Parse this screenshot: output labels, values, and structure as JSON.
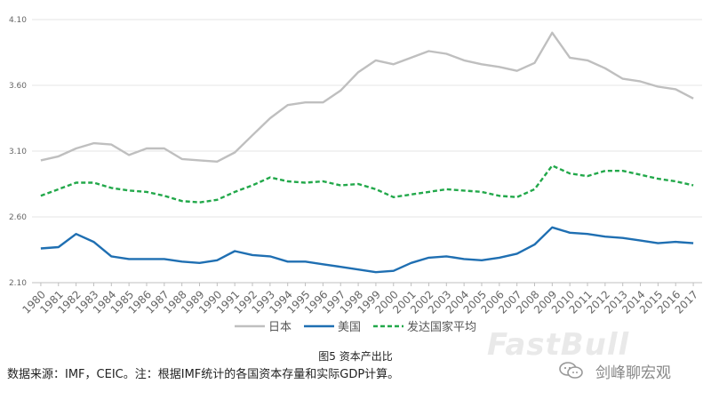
{
  "chart_data": {
    "type": "line",
    "title": "图5 资本产出比",
    "xlabel": "",
    "ylabel": "",
    "ylim": [
      2.1,
      4.1
    ],
    "yticks": [
      "2.10",
      "2.60",
      "3.10",
      "3.60",
      "4.10"
    ],
    "x": [
      "1980",
      "1981",
      "1982",
      "1983",
      "1984",
      "1985",
      "1986",
      "1987",
      "1988",
      "1989",
      "1990",
      "1991",
      "1992",
      "1993",
      "1994",
      "1995",
      "1996",
      "1997",
      "1998",
      "1999",
      "2000",
      "2001",
      "2002",
      "2003",
      "2004",
      "2005",
      "2006",
      "2007",
      "2008",
      "2009",
      "2010",
      "2011",
      "2012",
      "2013",
      "2014",
      "2015",
      "2016",
      "2017"
    ],
    "grid": "horizontal",
    "legend_position": "bottom",
    "series": [
      {
        "name": "日本",
        "color": "#bfbfbf",
        "style": "solid",
        "values": [
          3.03,
          3.06,
          3.12,
          3.16,
          3.15,
          3.07,
          3.12,
          3.12,
          3.04,
          3.03,
          3.02,
          3.09,
          3.22,
          3.35,
          3.45,
          3.47,
          3.47,
          3.56,
          3.7,
          3.79,
          3.76,
          3.81,
          3.86,
          3.84,
          3.79,
          3.76,
          3.74,
          3.71,
          3.77,
          4.0,
          3.81,
          3.79,
          3.73,
          3.65,
          3.63,
          3.59,
          3.57,
          3.5
        ]
      },
      {
        "name": "美国",
        "color": "#1f6fb2",
        "style": "solid",
        "values": [
          2.36,
          2.37,
          2.47,
          2.41,
          2.3,
          2.28,
          2.28,
          2.28,
          2.26,
          2.25,
          2.27,
          2.34,
          2.31,
          2.3,
          2.26,
          2.26,
          2.24,
          2.22,
          2.2,
          2.18,
          2.19,
          2.25,
          2.29,
          2.3,
          2.28,
          2.27,
          2.29,
          2.32,
          2.39,
          2.52,
          2.48,
          2.47,
          2.45,
          2.44,
          2.42,
          2.4,
          2.41,
          2.4
        ]
      },
      {
        "name": "发达国家平均",
        "color": "#22a84a",
        "style": "dashed",
        "values": [
          2.76,
          2.81,
          2.86,
          2.86,
          2.82,
          2.8,
          2.79,
          2.76,
          2.72,
          2.71,
          2.73,
          2.79,
          2.84,
          2.9,
          2.87,
          2.86,
          2.87,
          2.84,
          2.85,
          2.81,
          2.75,
          2.77,
          2.79,
          2.81,
          2.8,
          2.79,
          2.76,
          2.75,
          2.81,
          2.99,
          2.93,
          2.91,
          2.95,
          2.95,
          2.92,
          2.89,
          2.87,
          2.84
        ]
      }
    ]
  },
  "caption": "图5 资本产出比",
  "source_note": "数据来源：IMF，CEIC。注：根据IMF统计的各国资本存量和实际GDP计算。",
  "watermark": {
    "brand": "FastBull",
    "account": "剑峰聊宏观",
    "icon": "wechat-icon"
  }
}
